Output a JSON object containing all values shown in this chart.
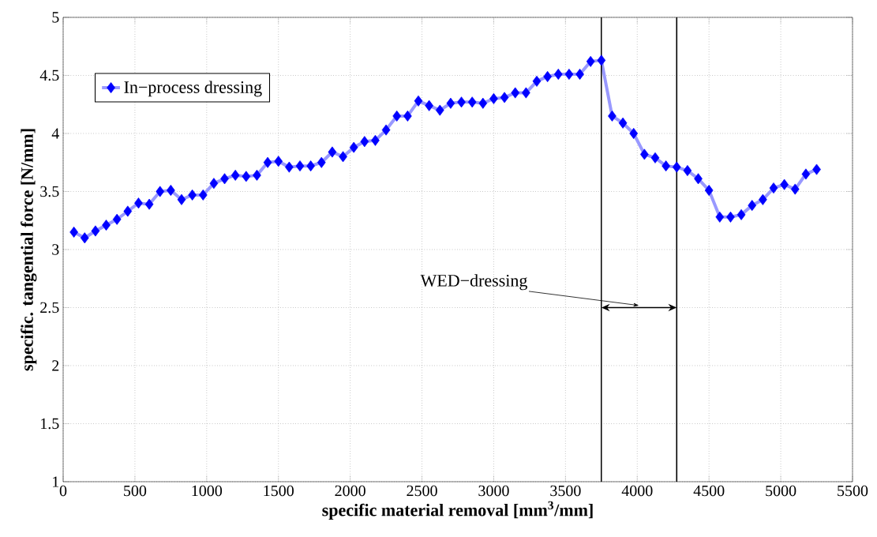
{
  "chart_data": {
    "type": "line",
    "xlabel": "specific material removal [mm$^{3}$/mm]",
    "ylabel": "specific. tangential force [N/mm]",
    "x": [
      75,
      150,
      225,
      300,
      375,
      450,
      525,
      600,
      675,
      750,
      825,
      900,
      975,
      1050,
      1125,
      1200,
      1275,
      1350,
      1425,
      1500,
      1575,
      1650,
      1725,
      1800,
      1875,
      1950,
      2025,
      2100,
      2175,
      2250,
      2325,
      2400,
      2475,
      2550,
      2625,
      2700,
      2775,
      2850,
      2925,
      3000,
      3075,
      3150,
      3225,
      3300,
      3375,
      3450,
      3525,
      3600,
      3675,
      3750,
      3825,
      3900,
      3975,
      4050,
      4125,
      4200,
      4275,
      4350,
      4425,
      4500,
      4575,
      4650,
      4725,
      4800,
      4875,
      4950,
      5025,
      5100,
      5175,
      5250
    ],
    "series": [
      {
        "name": "In−process dressing",
        "color": "#0000ff",
        "values": [
          3.15,
          3.1,
          3.16,
          3.21,
          3.26,
          3.33,
          3.4,
          3.39,
          3.5,
          3.51,
          3.43,
          3.47,
          3.47,
          3.57,
          3.61,
          3.64,
          3.63,
          3.64,
          3.75,
          3.76,
          3.71,
          3.72,
          3.72,
          3.75,
          3.84,
          3.8,
          3.88,
          3.93,
          3.94,
          4.03,
          4.15,
          4.15,
          4.28,
          4.24,
          4.2,
          4.26,
          4.27,
          4.27,
          4.26,
          4.3,
          4.31,
          4.35,
          4.35,
          4.45,
          4.49,
          4.51,
          4.51,
          4.51,
          4.62,
          4.63,
          4.15,
          4.09,
          4.0,
          3.82,
          3.79,
          3.72,
          3.71,
          3.68,
          3.61,
          3.51,
          3.28,
          3.28,
          3.3,
          3.38,
          3.43,
          3.53,
          3.56,
          3.52,
          3.65,
          3.69
        ]
      }
    ],
    "xlim": [
      0,
      5500
    ],
    "ylim": [
      1,
      5
    ],
    "xticks": [
      0,
      500,
      1000,
      1500,
      2000,
      2500,
      3000,
      3500,
      4000,
      4500,
      5000,
      5500
    ],
    "yticks": [
      1,
      1.5,
      2,
      2.5,
      3,
      3.5,
      4,
      4.5,
      5
    ],
    "ref_lines": [
      {
        "axis": "x",
        "value": 3750,
        "color": "#000000"
      },
      {
        "axis": "x",
        "value": 4275,
        "color": "#000000"
      }
    ],
    "annotations": [
      "WED−dressing"
    ],
    "grid": true,
    "legend": "top left",
    "marker": "diamond",
    "line_style": "solid"
  }
}
